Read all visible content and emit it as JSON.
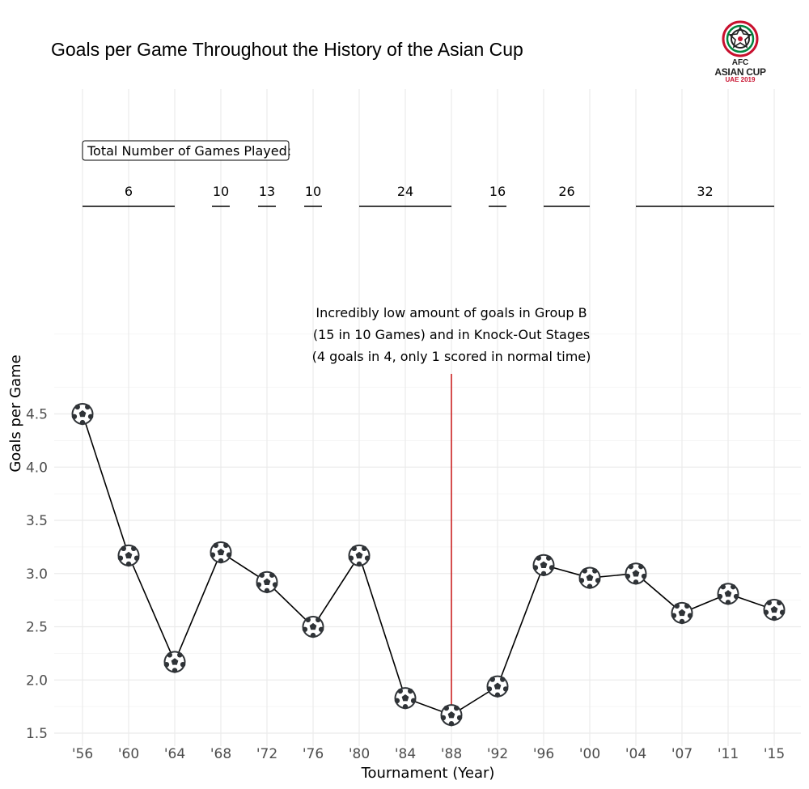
{
  "title": "Goals per Game Throughout the History of the Asian Cup",
  "logo": {
    "line1": "AFC",
    "line2": "ASIAN CUP",
    "line3": "UAE 2019"
  },
  "games_box_label": "Total Number of Games Played:",
  "colors": {
    "line": "#000000",
    "annotation_line": "#cc2222",
    "grid": "#ebebeb",
    "ball_dark": "#2f3337",
    "ball_light": "#ffffff"
  },
  "chart_data": {
    "type": "line",
    "title": "Goals per Game Throughout the History of the Asian Cup",
    "xlabel": "Tournament (Year)",
    "ylabel": "Goals per Game",
    "ylim": [
      1.45,
      4.55
    ],
    "y_ticks": [
      "1.5",
      "2.0",
      "2.5",
      "3.0",
      "3.5",
      "4.0",
      "4.5"
    ],
    "grid": true,
    "marker": "soccer-ball-icon",
    "categories": [
      "'56",
      "'60",
      "'64",
      "'68",
      "'72",
      "'76",
      "'80",
      "'84",
      "'88",
      "'92",
      "'96",
      "'00",
      "'04",
      "'07",
      "'11",
      "'15"
    ],
    "values": [
      4.5,
      3.17,
      2.17,
      3.2,
      2.92,
      2.5,
      3.17,
      1.83,
      1.67,
      1.94,
      3.08,
      2.96,
      3.0,
      2.63,
      2.81,
      2.66
    ],
    "games_played": [
      {
        "label": "6",
        "from": "'56",
        "to": "'64"
      },
      {
        "label": "10",
        "from": "'68",
        "to": "'68"
      },
      {
        "label": "13",
        "from": "'72",
        "to": "'72"
      },
      {
        "label": "10",
        "from": "'76",
        "to": "'76"
      },
      {
        "label": "24",
        "from": "'80",
        "to": "'88"
      },
      {
        "label": "16",
        "from": "'92",
        "to": "'92"
      },
      {
        "label": "26",
        "from": "'96",
        "to": "'00"
      },
      {
        "label": "32",
        "from": "'04",
        "to": "'15"
      }
    ],
    "annotation": {
      "category": "'88",
      "lines": [
        "Incredibly low amount of goals in Group B",
        "(15 in 10 Games) and in Knock-Out Stages",
        "(4 goals in 4, only 1 scored in normal time)"
      ]
    }
  }
}
